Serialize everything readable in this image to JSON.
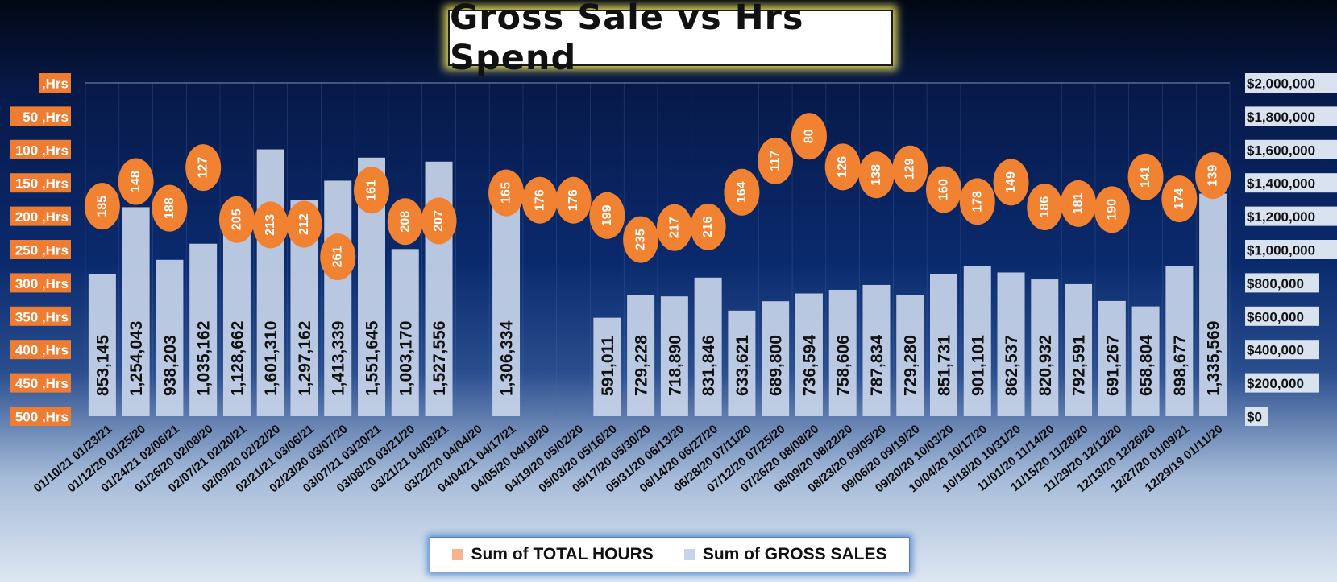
{
  "chart_data": {
    "type": "bar",
    "title": "Gross Sale vs Hrs Spend",
    "categories": [
      "01/10/21 01/23/21",
      "01/12/20 01/25/20",
      "01/24/21 02/06/21",
      "01/26/20 02/08/20",
      "02/07/21 02/20/21",
      "02/09/20 02/22/20",
      "02/21/21 03/06/21",
      "02/23/20 03/07/20",
      "03/07/21 03/20/21",
      "03/08/20 03/21/20",
      "03/21/21 04/03/21",
      "03/22/20 04/04/20",
      "04/04/21 04/17/21",
      "04/05/20 04/18/20",
      "04/19/20 05/02/20",
      "05/03/20 05/16/20",
      "05/17/20 05/30/20",
      "05/31/20 06/13/20",
      "06/14/20 06/27/20",
      "06/28/20 07/11/20",
      "07/12/20 07/25/20",
      "07/26/20 08/08/20",
      "08/09/20 08/22/20",
      "08/23/20 09/05/20",
      "09/06/20 09/19/20",
      "09/20/20 10/03/20",
      "10/04/20 10/17/20",
      "10/18/20 10/31/20",
      "11/01/20 11/14/20",
      "11/15/20 11/28/20",
      "11/29/20 12/12/20",
      "12/13/20 12/26/20",
      "12/27/20 01/09/21",
      "12/29/19 01/11/20"
    ],
    "series": [
      {
        "name": "Sum of TOTAL HOURS",
        "axis": "left (inverted)",
        "color": "#f08232",
        "values": [
          185,
          148,
          188,
          127,
          205,
          213,
          212,
          261,
          161,
          208,
          207,
          null,
          165,
          176,
          176,
          199,
          235,
          217,
          216,
          164,
          117,
          80,
          126,
          138,
          129,
          160,
          178,
          149,
          186,
          181,
          190,
          141,
          174,
          139
        ]
      },
      {
        "name": "Sum of GROSS SALES",
        "axis": "right",
        "color": "#c6d3e8",
        "values": [
          853145,
          1254043,
          938203,
          1035162,
          1128662,
          1601310,
          1297162,
          1413339,
          1551645,
          1003170,
          1527556,
          null,
          1306334,
          null,
          null,
          591011,
          729228,
          718890,
          831846,
          633621,
          689800,
          736594,
          758606,
          787834,
          729280,
          851731,
          901101,
          862537,
          820932,
          792591,
          691267,
          658804,
          898677,
          1335569
        ],
        "labels": [
          "853,145",
          "1,254,043",
          "938,203",
          "1,035,162",
          "1,128,662",
          "1,601,310",
          "1,297,162",
          "1,413,339",
          "1,551,645",
          "1,003,170",
          "1,527,556",
          "",
          "1,306,334",
          "",
          "",
          "591,011",
          "729,228",
          "718,890",
          "831,846",
          "633,621",
          "689,800",
          "736,594",
          "758,606",
          "787,834",
          "729,280",
          "851,731",
          "901,101",
          "862,537",
          "820,932",
          "792,591",
          "691,267",
          "658,804",
          "898,677",
          "1,335,569"
        ]
      }
    ],
    "left_axis": {
      "min": 0,
      "max": 500,
      "inverted": true,
      "tick_labels": [
        ",Hrs",
        "50 ,Hrs",
        "100 ,Hrs",
        "150 ,Hrs",
        "200 ,Hrs",
        "250 ,Hrs",
        "300 ,Hrs",
        "350 ,Hrs",
        "400 ,Hrs",
        "450 ,Hrs",
        "500 ,Hrs"
      ]
    },
    "right_axis": {
      "min": 0,
      "max": 2000000,
      "tick_labels": [
        "$0",
        "$200,000",
        "$400,000",
        "$600,000",
        "$800,000",
        "$1,000,000",
        "$1,200,000",
        "$1,400,000",
        "$1,600,000",
        "$1,800,000",
        "$2,000,000"
      ]
    },
    "legend_position": "bottom",
    "grid": "vertical"
  },
  "legend": {
    "hours_label": "Sum of TOTAL HOURS",
    "sales_label": "Sum of GROSS SALES"
  }
}
